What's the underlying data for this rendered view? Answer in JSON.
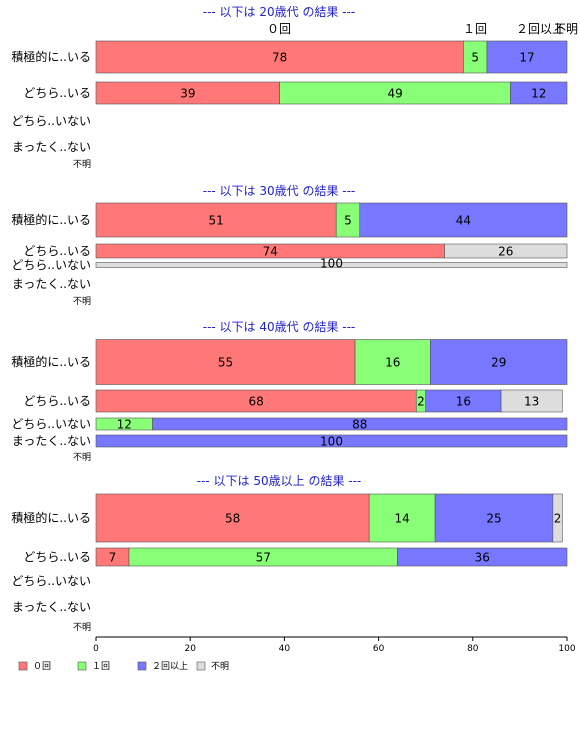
{
  "chart_data": {
    "type": "bar",
    "orientation": "horizontal",
    "stacked": true,
    "xlim": [
      0,
      100
    ],
    "xticks": [
      "0",
      "20",
      "40",
      "60",
      "80",
      "100"
    ],
    "series": [
      {
        "name": "０回",
        "color": "#ff7777"
      },
      {
        "name": "１回",
        "color": "#88ff77"
      },
      {
        "name": "２回以上",
        "color": "#7777ff"
      },
      {
        "name": "不明",
        "color": "#dddddd"
      }
    ],
    "header_labels": [
      "０回",
      "１回",
      "２回以上",
      "不明"
    ],
    "groups": [
      {
        "title": "--- 以下は 20歳代 の結果 ---",
        "rows": [
          {
            "label": "積極的に..いる",
            "values": [
              78,
              5,
              17,
              0
            ]
          },
          {
            "label": "どちら..いる",
            "values": [
              39,
              49,
              12,
              0
            ]
          },
          {
            "label": "どちら..いない",
            "values": [
              0,
              0,
              0,
              0
            ]
          },
          {
            "label": "まったく..ない",
            "values": [
              0,
              0,
              0,
              0
            ]
          },
          {
            "label": "不明",
            "values": [
              0,
              0,
              0,
              0
            ]
          }
        ]
      },
      {
        "title": "--- 以下は 30歳代 の結果 ---",
        "rows": [
          {
            "label": "積極的に..いる",
            "values": [
              51,
              5,
              44,
              0
            ]
          },
          {
            "label": "どちら..いる",
            "values": [
              74,
              0,
              0,
              26
            ]
          },
          {
            "label": "どちら..いない",
            "values": [
              0,
              0,
              0,
              100
            ]
          },
          {
            "label": "まったく..ない",
            "values": [
              0,
              0,
              0,
              0
            ]
          },
          {
            "label": "不明",
            "values": [
              0,
              0,
              0,
              0
            ]
          }
        ]
      },
      {
        "title": "--- 以下は 40歳代 の結果 ---",
        "rows": [
          {
            "label": "積極的に..いる",
            "values": [
              55,
              16,
              29,
              0
            ]
          },
          {
            "label": "どちら..いる",
            "values": [
              68,
              2,
              16,
              13
            ]
          },
          {
            "label": "どちら..いない",
            "values": [
              0,
              12,
              88,
              0
            ]
          },
          {
            "label": "まったく..ない",
            "values": [
              0,
              0,
              100,
              0
            ]
          },
          {
            "label": "不明",
            "values": [
              0,
              0,
              0,
              0
            ]
          }
        ]
      },
      {
        "title": "--- 以下は 50歳以上 の結果 ---",
        "rows": [
          {
            "label": "積極的に..いる",
            "values": [
              58,
              14,
              25,
              2
            ]
          },
          {
            "label": "どちら..いる",
            "values": [
              7,
              57,
              36,
              0
            ]
          },
          {
            "label": "どちら..いない",
            "values": [
              0,
              0,
              0,
              0
            ]
          },
          {
            "label": "まったく..ない",
            "values": [
              0,
              0,
              0,
              0
            ]
          },
          {
            "label": "不明",
            "values": [
              0,
              0,
              0,
              0
            ]
          }
        ]
      }
    ]
  }
}
